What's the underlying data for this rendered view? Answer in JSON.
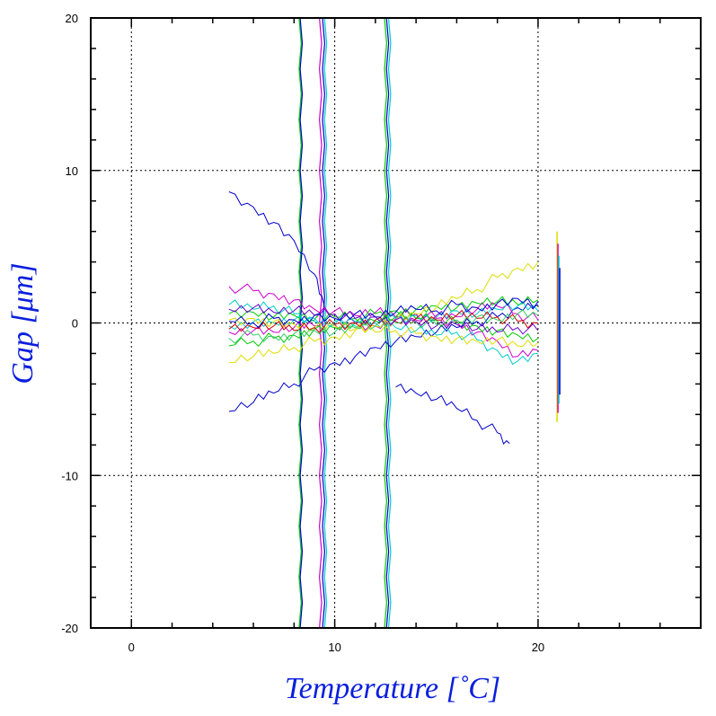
{
  "chart_data": {
    "type": "line",
    "title": "",
    "xlabel": "Temperature [˚C]",
    "ylabel": "Gap [μm]",
    "xlim": [
      -2,
      28
    ],
    "ylim": [
      -20,
      20
    ],
    "x_ticks": [
      0,
      10,
      20
    ],
    "y_ticks": [
      20,
      10,
      0,
      -10,
      -20
    ],
    "x_tick_labels": [
      "0",
      "10",
      "20"
    ],
    "y_tick_labels": [
      "20",
      "10",
      "0",
      "-10",
      "-20"
    ],
    "grid": "dotted at labeled ticks",
    "legend": "none",
    "series_colors": [
      "#0000cc",
      "#cc00cc",
      "#00cc00",
      "#00cccc",
      "#dddd00",
      "#cc0000",
      "#33cc66",
      "#6600cc"
    ],
    "series": [
      {
        "color": "#0000cc",
        "x": [
          4.8,
          6,
          7,
          8,
          9,
          10,
          11,
          12,
          13,
          14,
          15,
          16,
          17,
          18,
          19,
          20
        ],
        "y": [
          -5.8,
          -5.2,
          -4.6,
          -4.0,
          -3.1,
          -2.6,
          -2.2,
          -1.6,
          -1.2,
          -0.9,
          -0.6,
          -0.3,
          0.1,
          0.4,
          1.0,
          1.4
        ]
      },
      {
        "color": "#0000cc",
        "x": [
          4.8,
          6,
          7,
          8,
          9,
          9.5
        ],
        "y": [
          8.6,
          7.6,
          6.6,
          5.4,
          3.2,
          1.0
        ]
      },
      {
        "color": "#0000cc",
        "x": [
          13,
          14,
          15,
          16,
          17,
          18,
          18.6
        ],
        "y": [
          -4.2,
          -4.6,
          -5.0,
          -5.6,
          -6.4,
          -7.2,
          -7.9
        ]
      },
      {
        "color": "#cc00cc",
        "x": [
          4.8,
          6,
          7,
          8,
          9,
          10,
          11,
          12,
          13,
          14,
          15,
          16,
          17,
          18,
          19,
          20
        ],
        "y": [
          2.4,
          2.1,
          1.9,
          1.5,
          0.9,
          0.8,
          0.5,
          0.7,
          0.4,
          0.6,
          0.3,
          0.1,
          -0.6,
          -1.2,
          -2.2,
          -1.8
        ]
      },
      {
        "color": "#cc00cc",
        "x": [
          4.8,
          6,
          7,
          8,
          9,
          10,
          11,
          12,
          13,
          14,
          15,
          16,
          17,
          18,
          19,
          20
        ],
        "y": [
          -0.6,
          -0.5,
          -0.6,
          -0.3,
          -0.2,
          -0.1,
          0.0,
          -0.2,
          0.3,
          0.2,
          0.5,
          0.4,
          0.9,
          1.1,
          0.6,
          0.2
        ]
      },
      {
        "color": "#00cc00",
        "x": [
          4.8,
          6,
          7,
          8,
          9,
          10,
          11,
          12,
          13,
          14,
          15,
          16,
          17,
          18,
          19,
          20
        ],
        "y": [
          -1.5,
          -1.2,
          -1.0,
          -0.8,
          -0.4,
          -0.3,
          0.0,
          0.1,
          0.4,
          0.3,
          0.2,
          0.0,
          -0.2,
          -0.5,
          -0.8,
          -1.0
        ]
      },
      {
        "color": "#00cc00",
        "x": [
          4.8,
          6,
          7,
          8,
          9,
          10,
          11,
          12,
          13,
          14,
          15,
          16,
          17,
          18,
          19,
          20
        ],
        "y": [
          0.6,
          0.7,
          0.4,
          0.5,
          0.2,
          0.4,
          0.3,
          0.6,
          0.8,
          0.9,
          1.1,
          1.0,
          1.3,
          1.4,
          1.2,
          1.5
        ]
      },
      {
        "color": "#00cccc",
        "x": [
          4.8,
          6,
          7,
          8,
          9,
          10,
          11,
          12,
          13,
          14,
          15,
          16,
          17,
          18,
          19,
          20
        ],
        "y": [
          1.2,
          0.9,
          1.1,
          0.6,
          0.3,
          0.1,
          -0.2,
          0.2,
          -0.3,
          -0.5,
          -0.8,
          -0.6,
          -1.1,
          -1.8,
          -2.5,
          -2.0
        ]
      },
      {
        "color": "#00cccc",
        "x": [
          4.8,
          6,
          7,
          8,
          9,
          10,
          11,
          12,
          13,
          14,
          15,
          16,
          17,
          18,
          19,
          20
        ],
        "y": [
          -0.2,
          0.1,
          0.0,
          0.2,
          0.1,
          -0.1,
          0.1,
          0.0,
          0.3,
          0.5,
          0.4,
          0.8,
          0.6,
          0.9,
          1.1,
          0.8
        ]
      },
      {
        "color": "#dddd00",
        "x": [
          4.8,
          6,
          7,
          8,
          9,
          10,
          11,
          12,
          13,
          14,
          15,
          16,
          17,
          18,
          19,
          20
        ],
        "y": [
          -2.6,
          -2.2,
          -2.0,
          -1.6,
          -1.2,
          -0.9,
          -0.5,
          -0.2,
          0.2,
          0.6,
          1.0,
          1.6,
          2.2,
          3.0,
          3.6,
          4.0
        ]
      },
      {
        "color": "#dddd00",
        "x": [
          4.8,
          6,
          7,
          8,
          9,
          10,
          11,
          12,
          13,
          14,
          15,
          16,
          17,
          18,
          19,
          20
        ],
        "y": [
          0.2,
          0.3,
          0.1,
          -0.1,
          -0.3,
          -0.2,
          -0.4,
          -0.6,
          -0.5,
          -0.7,
          -0.9,
          -1.0,
          -1.2,
          -1.1,
          -1.5,
          -1.3
        ]
      },
      {
        "color": "#cc0000",
        "x": [
          4.8,
          6,
          7,
          8,
          9,
          10,
          11,
          12,
          13,
          14,
          15,
          16,
          17,
          18,
          19,
          20
        ],
        "y": [
          -0.4,
          -0.3,
          -0.2,
          -0.5,
          -0.3,
          -0.1,
          0.0,
          0.2,
          0.1,
          0.3,
          0.2,
          0.5,
          0.3,
          0.4,
          0.1,
          0.0
        ]
      },
      {
        "color": "#33cc66",
        "x": [
          4.8,
          6,
          7,
          8,
          9,
          10,
          11,
          12,
          13,
          14,
          15,
          16,
          17,
          18,
          19,
          20
        ],
        "y": [
          -1.0,
          -0.8,
          -0.9,
          -0.7,
          -0.5,
          -0.6,
          -0.3,
          -0.2,
          0.0,
          0.1,
          -0.1,
          0.2,
          0.4,
          0.2,
          0.6,
          0.5
        ]
      },
      {
        "color": "#6600cc",
        "x": [
          4.8,
          6,
          7,
          8,
          9,
          10,
          11,
          12,
          13,
          14,
          15,
          16,
          17,
          18,
          19,
          20
        ],
        "y": [
          0.9,
          1.0,
          0.7,
          0.8,
          0.5,
          0.6,
          0.3,
          0.4,
          0.2,
          0.1,
          -0.2,
          -0.1,
          -0.4,
          -0.6,
          -0.3,
          -0.5
        ]
      },
      {
        "color": "#0000cc",
        "x": [
          4.8,
          6,
          7,
          8,
          9,
          10,
          11,
          12,
          13,
          14,
          15,
          16,
          17,
          18,
          19,
          20
        ],
        "y": [
          0.1,
          0.0,
          0.3,
          0.2,
          0.5,
          0.3,
          0.6,
          0.4,
          0.7,
          0.9,
          0.8,
          1.2,
          1.0,
          1.3,
          1.6,
          1.2
        ]
      }
    ],
    "vertical_excursions": [
      {
        "x": 8.3,
        "color": "#00cc00"
      },
      {
        "x": 8.35,
        "color": "#0000cc"
      },
      {
        "x": 9.3,
        "color": "#cc00cc"
      },
      {
        "x": 9.45,
        "color": "#0000cc"
      },
      {
        "x": 9.55,
        "color": "#00cccc"
      },
      {
        "x": 12.5,
        "color": "#00cc00"
      },
      {
        "x": 12.6,
        "color": "#0000cc"
      },
      {
        "x": 12.7,
        "color": "#00cccc"
      }
    ],
    "end_segments": [
      {
        "x": 21.0,
        "y0": -6.5,
        "y1": 6.0,
        "colors": [
          "#dddd00",
          "#cc00cc",
          "#00cccc",
          "#0000cc"
        ]
      }
    ]
  }
}
